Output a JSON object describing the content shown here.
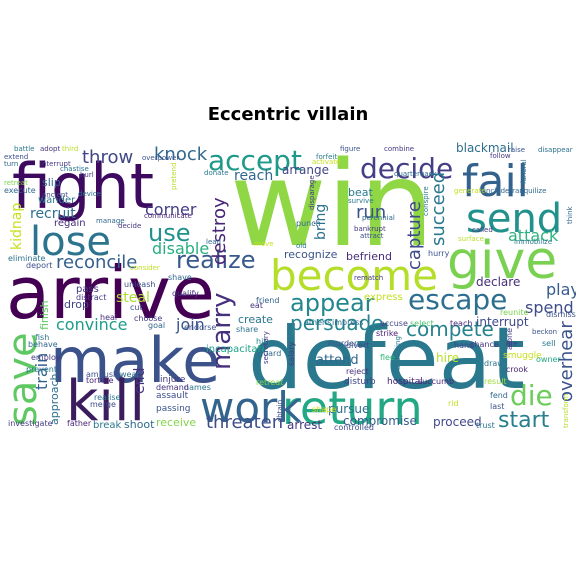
{
  "title": "Eccentric villain",
  "words": [
    {
      "text": "win",
      "color": "#8fd744"
    },
    {
      "text": "defeat",
      "color": "#2a788e"
    },
    {
      "text": "arrive",
      "color": "#440154"
    },
    {
      "text": "make",
      "color": "#3b528b"
    },
    {
      "text": "fight",
      "color": "#3e0a5f"
    },
    {
      "text": "become",
      "color": "#b5de2b"
    },
    {
      "text": "return",
      "color": "#22a884"
    },
    {
      "text": "give",
      "color": "#7ad151"
    },
    {
      "text": "kill",
      "color": "#3b1c5c"
    },
    {
      "text": "fail",
      "color": "#33628d"
    },
    {
      "text": "send",
      "color": "#21918c"
    },
    {
      "text": "save",
      "color": "#5ec962"
    },
    {
      "text": "lose",
      "color": "#2c738e"
    },
    {
      "text": "work",
      "color": "#32648e"
    },
    {
      "text": "escape",
      "color": "#2c6f8e"
    },
    {
      "text": "accept",
      "color": "#1f998a"
    },
    {
      "text": "decide",
      "color": "#433e85"
    },
    {
      "text": "die",
      "color": "#6ccd5a"
    },
    {
      "text": "appear",
      "color": "#23888e"
    },
    {
      "text": "realize",
      "color": "#38598c"
    },
    {
      "text": "start",
      "color": "#277f8e"
    },
    {
      "text": "threaten",
      "color": "#3d4e8a"
    },
    {
      "text": "use",
      "color": "#21918c"
    },
    {
      "text": "marry",
      "color": "#46307e"
    },
    {
      "text": "persuade",
      "color": "#25848e"
    },
    {
      "text": "knock",
      "color": "#31688e"
    },
    {
      "text": "throw",
      "color": "#404688"
    },
    {
      "text": "compete",
      "color": "#26828e"
    },
    {
      "text": "reconcile",
      "color": "#34608d"
    },
    {
      "text": "convince",
      "color": "#1e9c89"
    },
    {
      "text": "destroy",
      "color": "#482475"
    },
    {
      "text": "capture",
      "color": "#3f4889"
    },
    {
      "text": "succeed",
      "color": "#2a788e"
    },
    {
      "text": "disable",
      "color": "#28ae80"
    },
    {
      "text": "attack",
      "color": "#2db27d"
    },
    {
      "text": "play",
      "color": "#375b8d"
    },
    {
      "text": "overhear",
      "color": "#3a548c"
    },
    {
      "text": "spend",
      "color": "#3e4c8a"
    },
    {
      "text": "train",
      "color": "#33638d"
    },
    {
      "text": "end",
      "color": "#46337e"
    },
    {
      "text": "join",
      "color": "#39558c"
    },
    {
      "text": "corner",
      "color": "#433e85"
    },
    {
      "text": "reach",
      "color": "#31688e"
    },
    {
      "text": "recruit",
      "color": "#2d708e"
    },
    {
      "text": "steal",
      "color": "#addc30"
    },
    {
      "text": "run",
      "color": "#3b528b"
    },
    {
      "text": "kidnap",
      "color": "#c8e020"
    },
    {
      "text": "bring",
      "color": "#2c728e"
    },
    {
      "text": "arrange",
      "color": "#414487"
    },
    {
      "text": "blackmail",
      "color": "#2e6e8e"
    },
    {
      "text": "declare",
      "color": "#472d7b"
    },
    {
      "text": "interrupt",
      "color": "#3e4a89"
    },
    {
      "text": "arrest",
      "color": "#443983"
    },
    {
      "text": "proceed",
      "color": "#3f4788"
    },
    {
      "text": "compromise",
      "color": "#365c8d"
    },
    {
      "text": "pursue",
      "color": "#2e6f8e"
    },
    {
      "text": "receive",
      "color": "#84d44b"
    },
    {
      "text": "shoot",
      "color": "#2f6b8e"
    },
    {
      "text": "break",
      "color": "#29798e"
    },
    {
      "text": "create",
      "color": "#2a768e"
    },
    {
      "text": "attend",
      "color": "#31688e"
    },
    {
      "text": "hire",
      "color": "#b8de29"
    },
    {
      "text": "recognize",
      "color": "#3b528b"
    },
    {
      "text": "befriend",
      "color": "#472c7a"
    },
    {
      "text": "approach",
      "color": "#2e6e8e"
    },
    {
      "text": "finish",
      "color": "#5ec962"
    },
    {
      "text": "drop",
      "color": "#414487"
    },
    {
      "text": "pass",
      "color": "#443983"
    },
    {
      "text": "slip",
      "color": "#31688e"
    },
    {
      "text": "wander",
      "color": "#2a788e"
    },
    {
      "text": "regain",
      "color": "#472d7b"
    },
    {
      "text": "beat",
      "color": "#287c8e"
    },
    {
      "text": "express",
      "color": "#c2df23"
    },
    {
      "text": "unleash",
      "color": "#3d4e8a"
    },
    {
      "text": "incapacitate",
      "color": "#1fa187"
    },
    {
      "text": "injure",
      "color": "#443a83"
    },
    {
      "text": "assault",
      "color": "#3e4c8a"
    },
    {
      "text": "passing",
      "color": "#3a548c"
    },
    {
      "text": "retreat",
      "color": "#7fd34e"
    },
    {
      "text": "hospital",
      "color": "#482677"
    },
    {
      "text": "disturb",
      "color": "#414487"
    },
    {
      "text": "divert",
      "color": "#3f4889"
    },
    {
      "text": "accuse",
      "color": "#404688"
    },
    {
      "text": "select",
      "color": "#4ac16d"
    },
    {
      "text": "teach",
      "color": "#472c7a"
    },
    {
      "text": "chance",
      "color": "#453781"
    },
    {
      "text": "draw",
      "color": "#2c728e"
    },
    {
      "text": "fend",
      "color": "#31688e"
    },
    {
      "text": "last",
      "color": "#3b528b"
    },
    {
      "text": "result",
      "color": "#9fda3a"
    },
    {
      "text": "crook",
      "color": "#482475"
    },
    {
      "text": "smuggle",
      "color": "#c8e020"
    },
    {
      "text": "hand",
      "color": "#3e4a89"
    },
    {
      "text": "sell",
      "color": "#2a788e"
    },
    {
      "text": "owner",
      "color": "#22a884"
    },
    {
      "text": "transform",
      "color": "#b2dd2d"
    },
    {
      "text": "dismiss",
      "color": "#3b528b"
    },
    {
      "text": "reunite",
      "color": "#7ad151"
    },
    {
      "text": "hurry",
      "color": "#3a548c"
    },
    {
      "text": "strike",
      "color": "#482475"
    },
    {
      "text": "reject",
      "color": "#46307e"
    },
    {
      "text": "flee",
      "color": "#35b779"
    },
    {
      "text": "guard",
      "color": "#31688e"
    },
    {
      "text": "hit",
      "color": "#25848e"
    },
    {
      "text": "shape",
      "color": "#d2e21b"
    },
    {
      "text": "controlled",
      "color": "#3e4c8a"
    },
    {
      "text": "trust",
      "color": "#2b748e"
    },
    {
      "text": "succumb",
      "color": "#482677"
    },
    {
      "text": "rid",
      "color": "#c2df23"
    },
    {
      "text": "salary",
      "color": "#443983"
    },
    {
      "text": "impress",
      "color": "#31688e"
    },
    {
      "text": "athens",
      "color": "#2a788e"
    },
    {
      "text": "share",
      "color": "#2c738e"
    },
    {
      "text": "friend",
      "color": "#33638d"
    },
    {
      "text": "eat",
      "color": "#46307e"
    },
    {
      "text": "endorse",
      "color": "#3b528b"
    },
    {
      "text": "qualify",
      "color": "#443983"
    },
    {
      "text": "shave",
      "color": "#31688e"
    },
    {
      "text": "names",
      "color": "#2a788e"
    },
    {
      "text": "demand",
      "color": "#46307e"
    },
    {
      "text": "cut",
      "color": "#3e4c8a"
    },
    {
      "text": "choose",
      "color": "#443983"
    },
    {
      "text": "wear",
      "color": "#2e6f8e"
    },
    {
      "text": "ambush",
      "color": "#3b528b"
    },
    {
      "text": "torture",
      "color": "#482475"
    },
    {
      "text": "prevent",
      "color": "#2a788e"
    },
    {
      "text": "employ",
      "color": "#443983"
    },
    {
      "text": "behave",
      "color": "#31688e"
    },
    {
      "text": "fish",
      "color": "#2c738e"
    },
    {
      "text": "investigate",
      "color": "#443983"
    },
    {
      "text": "father",
      "color": "#482677"
    },
    {
      "text": "merge",
      "color": "#3e4c8a"
    },
    {
      "text": "realise",
      "color": "#2a788e"
    },
    {
      "text": "goal",
      "color": "#31688e"
    },
    {
      "text": "distract",
      "color": "#443983"
    },
    {
      "text": "heal",
      "color": "#46307e"
    },
    {
      "text": "deport",
      "color": "#3b528b"
    },
    {
      "text": "eliminate",
      "color": "#2c738e"
    },
    {
      "text": "execute",
      "color": "#31688e"
    },
    {
      "text": "retreat2",
      "color": "#7fd34e"
    },
    {
      "text": "battle",
      "color": "#2a788e"
    },
    {
      "text": "adopt",
      "color": "#443983"
    },
    {
      "text": "third",
      "color": "#b8de29"
    },
    {
      "text": "extend",
      "color": "#3b528b"
    },
    {
      "text": "turn",
      "color": "#31688e"
    },
    {
      "text": "interrupt2",
      "color": "#443983"
    },
    {
      "text": "chastise",
      "color": "#2a788e"
    },
    {
      "text": "hurl",
      "color": "#443983"
    },
    {
      "text": "ancient",
      "color": "#3e4c8a"
    },
    {
      "text": "device",
      "color": "#2c738e"
    },
    {
      "text": "manage",
      "color": "#31688e"
    },
    {
      "text": "decide2",
      "color": "#443983"
    },
    {
      "text": "communicate",
      "color": "#482475"
    },
    {
      "text": "consider",
      "color": "#c2df23"
    },
    {
      "text": "pretend",
      "color": "#b8de29"
    },
    {
      "text": "overpower",
      "color": "#3b528b"
    },
    {
      "text": "donate",
      "color": "#2a788e"
    },
    {
      "text": "move",
      "color": "#c8e020"
    },
    {
      "text": "punch",
      "color": "#31688e"
    },
    {
      "text": "disparage",
      "color": "#443983"
    },
    {
      "text": "forfeit",
      "color": "#2a788e"
    },
    {
      "text": "figure",
      "color": "#3b528b"
    },
    {
      "text": "combine",
      "color": "#443983"
    },
    {
      "text": "quarterback",
      "color": "#31688e"
    },
    {
      "text": "survive",
      "color": "#2a788e"
    },
    {
      "text": "bankrupt",
      "color": "#443983"
    },
    {
      "text": "attract",
      "color": "#3e4c8a"
    },
    {
      "text": "perennial",
      "color": "#31688e"
    },
    {
      "text": "rematch",
      "color": "#443983"
    },
    {
      "text": "old",
      "color": "#2a788e"
    },
    {
      "text": "murder",
      "color": "#3b528b"
    },
    {
      "text": "generate",
      "color": "#c2df23"
    },
    {
      "text": "surface",
      "color": "#b8de29"
    },
    {
      "text": "called",
      "color": "#443983"
    },
    {
      "text": "funeral",
      "color": "#2c738e"
    },
    {
      "text": "includetranquilize",
      "color": "#31688e"
    },
    {
      "text": "immobilize",
      "color": "#2a788e"
    },
    {
      "text": "alone",
      "color": "#443983"
    },
    {
      "text": "raise",
      "color": "#3b528b"
    },
    {
      "text": "disappear",
      "color": "#2c738e"
    },
    {
      "text": "think",
      "color": "#31688e"
    },
    {
      "text": "follow",
      "color": "#443983"
    },
    {
      "text": "agonizing",
      "color": "#2a788e"
    },
    {
      "text": "secretary",
      "color": "#443983"
    },
    {
      "text": "obtain",
      "color": "#3e4c8a"
    },
    {
      "text": "activate",
      "color": "#c8e020"
    },
    {
      "text": "lead",
      "color": "#31688e"
    },
    {
      "text": "conspire",
      "color": "#2a788e"
    },
    {
      "text": "fire",
      "color": "#443983"
    },
    {
      "text": "beckon",
      "color": "#3b528b"
    }
  ]
}
